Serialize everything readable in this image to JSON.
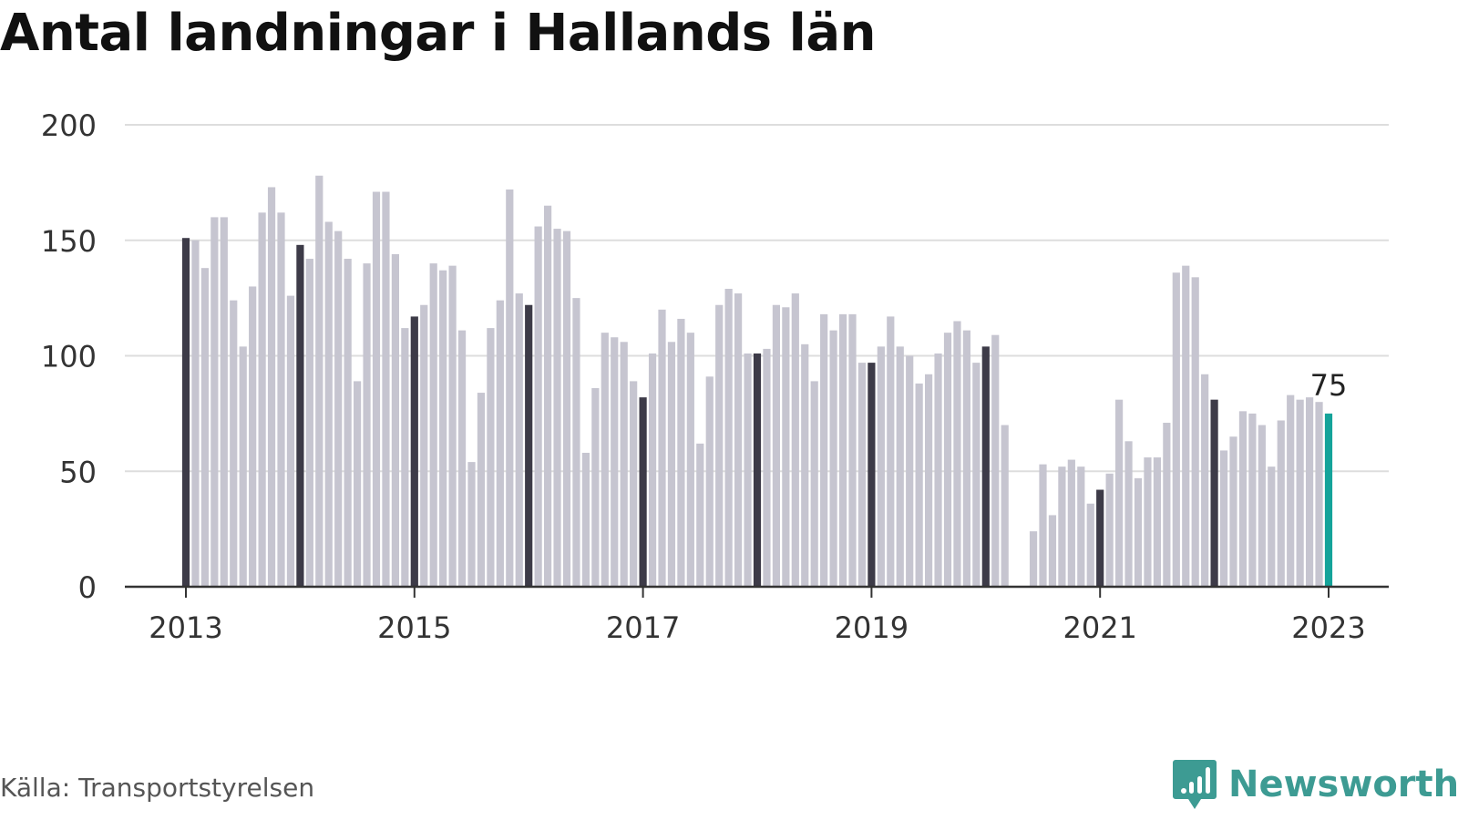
{
  "title": "Antal landningar i Hallands län",
  "source": "Källa: Transportstyrelsen",
  "brand": {
    "name": "Newsworthy",
    "icon": "newsworthy-logo-icon"
  },
  "colors": {
    "bar": "#c6c5d0",
    "january_bar": "#3d3b48",
    "highlight": "#14a39a",
    "grid": "#dddddd",
    "axis": "#333333"
  },
  "chart_data": {
    "type": "bar",
    "frequency": "monthly",
    "start": "2013-01",
    "ylim": [
      0,
      200
    ],
    "yticks": [
      0,
      50,
      100,
      150,
      200
    ],
    "xticks": [
      "2013",
      "2015",
      "2017",
      "2019",
      "2021",
      "2023"
    ],
    "grid": true,
    "highlight_label": "75",
    "values": [
      151,
      150,
      138,
      160,
      160,
      124,
      104,
      130,
      162,
      173,
      162,
      126,
      148,
      142,
      178,
      158,
      154,
      142,
      89,
      140,
      171,
      171,
      144,
      112,
      117,
      122,
      140,
      137,
      139,
      111,
      54,
      84,
      112,
      124,
      172,
      127,
      122,
      156,
      165,
      155,
      154,
      125,
      58,
      86,
      110,
      108,
      106,
      89,
      82,
      101,
      120,
      106,
      116,
      110,
      62,
      91,
      122,
      129,
      127,
      101,
      101,
      103,
      122,
      121,
      127,
      105,
      89,
      118,
      111,
      118,
      118,
      97,
      97,
      104,
      117,
      104,
      100,
      88,
      92,
      101,
      110,
      115,
      111,
      97,
      104,
      109,
      70,
      0,
      0,
      24,
      53,
      31,
      52,
      55,
      52,
      36,
      42,
      49,
      81,
      63,
      47,
      56,
      56,
      71,
      136,
      139,
      134,
      92,
      81,
      59,
      65,
      76,
      75,
      70,
      52,
      72,
      83,
      81,
      82,
      80,
      75
    ]
  }
}
